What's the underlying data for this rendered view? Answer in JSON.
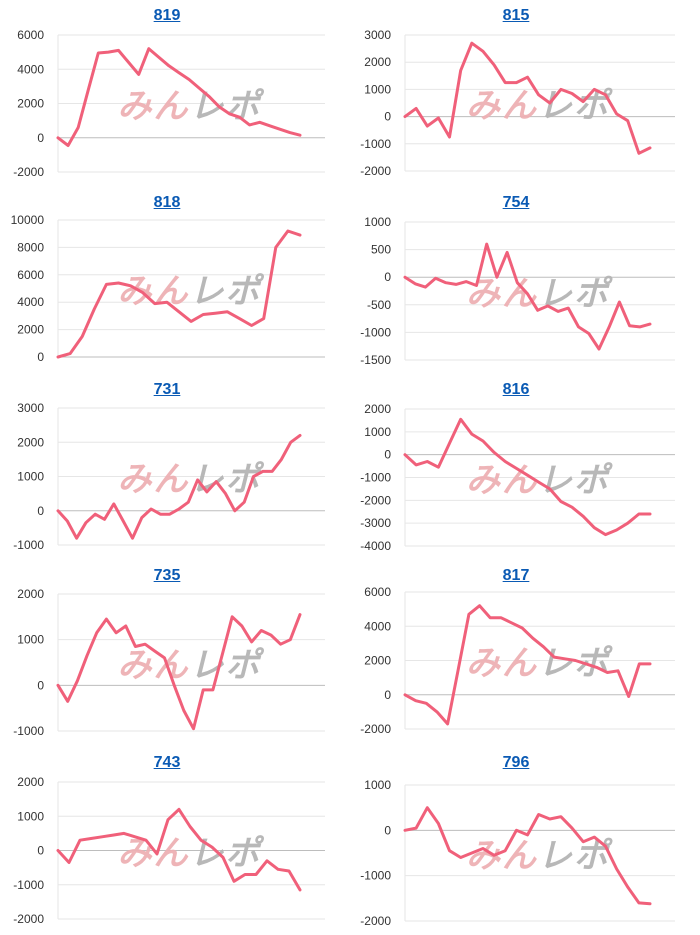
{
  "style": {
    "line_color": "#f0607a",
    "grid_color": "#e6e6e6",
    "baseline_color": "#bdbdbd",
    "tick_color": "#333333",
    "title_color": "#0a5ab4"
  },
  "watermark": {
    "text": "みんレポ",
    "colors": [
      "#eeb0b4",
      "#b5b5b5"
    ]
  },
  "chart_data": [
    {
      "type": "line",
      "title": "819",
      "ylim": [
        -2000,
        6000
      ],
      "yticks": [
        "6000",
        "4000",
        "2000",
        "0",
        "-2000"
      ],
      "series": [
        {
          "values": [
            0,
            -450,
            600,
            2800,
            4950,
            5000,
            5100,
            4400,
            3700,
            5200,
            4700,
            4200,
            3800,
            3400,
            2900,
            2400,
            1800,
            1400,
            1200,
            750,
            900,
            700,
            500,
            300,
            150
          ]
        }
      ]
    },
    {
      "type": "line",
      "title": "815",
      "ylim": [
        -2000,
        3000
      ],
      "yticks": [
        "3000",
        "2000",
        "1000",
        "0",
        "-1000",
        "-2000"
      ],
      "series": [
        {
          "values": [
            0,
            300,
            -350,
            -50,
            -750,
            1700,
            2700,
            2400,
            1900,
            1250,
            1250,
            1450,
            800,
            500,
            1000,
            850,
            550,
            1000,
            800,
            100,
            -150,
            -1350,
            -1150
          ]
        }
      ]
    },
    {
      "type": "line",
      "title": "818",
      "ylim": [
        0,
        10000
      ],
      "yticks": [
        "10000",
        "8000",
        "6000",
        "4000",
        "2000",
        "0"
      ],
      "series": [
        {
          "values": [
            0,
            250,
            1500,
            3500,
            5300,
            5400,
            5200,
            4700,
            3900,
            4000,
            3300,
            2600,
            3100,
            3200,
            3300,
            2800,
            2300,
            2800,
            8000,
            9200,
            8900
          ]
        }
      ]
    },
    {
      "type": "line",
      "title": "754",
      "ylim": [
        -1500,
        1000
      ],
      "yticks": [
        "1000",
        "500",
        "0",
        "-500",
        "-1000",
        "-1500"
      ],
      "series": [
        {
          "values": [
            0,
            -120,
            -180,
            -20,
            -100,
            -130,
            -80,
            -150,
            600,
            0,
            450,
            -100,
            -300,
            -600,
            -520,
            -620,
            -560,
            -900,
            -1020,
            -1300,
            -900,
            -450,
            -880,
            -900,
            -850
          ]
        }
      ]
    },
    {
      "type": "line",
      "title": "731",
      "ylim": [
        -1000,
        3000
      ],
      "yticks": [
        "3000",
        "2000",
        "1000",
        "0",
        "-1000"
      ],
      "series": [
        {
          "values": [
            0,
            -300,
            -800,
            -350,
            -100,
            -250,
            200,
            -300,
            -800,
            -200,
            50,
            -100,
            -100,
            50,
            250,
            900,
            550,
            850,
            500,
            0,
            250,
            1000,
            1150,
            1150,
            1500,
            2000,
            2200
          ]
        }
      ]
    },
    {
      "type": "line",
      "title": "816",
      "ylim": [
        -4000,
        2000
      ],
      "yticks": [
        "2000",
        "1000",
        "0",
        "-1000",
        "-2000",
        "-3000",
        "-4000"
      ],
      "series": [
        {
          "values": [
            0,
            -450,
            -300,
            -550,
            500,
            1550,
            900,
            600,
            100,
            -300,
            -600,
            -900,
            -1200,
            -1500,
            -2050,
            -2300,
            -2700,
            -3200,
            -3500,
            -3300,
            -3000,
            -2600,
            -2600
          ]
        }
      ]
    },
    {
      "type": "line",
      "title": "735",
      "ylim": [
        -1000,
        2000
      ],
      "yticks": [
        "2000",
        "1000",
        "0",
        "-1000"
      ],
      "series": [
        {
          "values": [
            0,
            -350,
            100,
            650,
            1150,
            1450,
            1150,
            1300,
            850,
            900,
            750,
            600,
            0,
            -550,
            -950,
            -100,
            -100,
            700,
            1500,
            1300,
            950,
            1200,
            1100,
            900,
            1000,
            1550
          ]
        }
      ]
    },
    {
      "type": "line",
      "title": "817",
      "ylim": [
        -2000,
        6000
      ],
      "yticks": [
        "6000",
        "4000",
        "2000",
        "0",
        "-2000"
      ],
      "series": [
        {
          "values": [
            0,
            -350,
            -500,
            -1000,
            -1700,
            1500,
            4700,
            5200,
            4500,
            4500,
            4200,
            3900,
            3300,
            2800,
            2200,
            2100,
            2000,
            1800,
            1600,
            1300,
            1400,
            -100,
            1800,
            1800
          ]
        }
      ]
    },
    {
      "type": "line",
      "title": "743",
      "ylim": [
        -2000,
        2000
      ],
      "yticks": [
        "2000",
        "1000",
        "0",
        "-1000",
        "-2000"
      ],
      "series": [
        {
          "values": [
            0,
            -350,
            300,
            350,
            400,
            450,
            500,
            400,
            300,
            -100,
            900,
            1200,
            700,
            300,
            100,
            -200,
            -900,
            -700,
            -700,
            -300,
            -550,
            -600,
            -1150
          ]
        }
      ]
    },
    {
      "type": "line",
      "title": "796",
      "ylim": [
        -2000,
        1000
      ],
      "yticks": [
        "1000",
        "0",
        "-1000",
        "-2000"
      ],
      "series": [
        {
          "values": [
            0,
            50,
            500,
            150,
            -450,
            -600,
            -500,
            -400,
            -550,
            -450,
            0,
            -100,
            350,
            250,
            300,
            50,
            -250,
            -150,
            -350,
            -850,
            -1250,
            -1600,
            -1620
          ]
        }
      ]
    }
  ]
}
